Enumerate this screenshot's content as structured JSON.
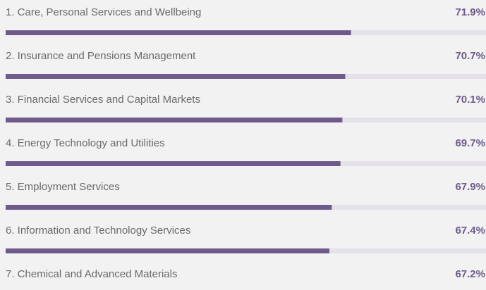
{
  "chart_data": {
    "type": "bar",
    "orientation": "horizontal",
    "categories": [
      "1. Care, Personal Services and Wellbeing",
      "2. Insurance and Pensions Management",
      "3. Financial Services and Capital Markets",
      "4. Energy Technology and Utilities",
      "5. Employment Services",
      "6. Information and Technology Services",
      "7. Chemical and Advanced Materials"
    ],
    "values": [
      71.9,
      70.7,
      70.1,
      69.7,
      67.9,
      67.4,
      67.2
    ],
    "value_labels": [
      "71.9%",
      "70.7%",
      "70.1%",
      "69.7%",
      "67.9%",
      "67.4%",
      "67.2%"
    ],
    "color": "#6e5b8c",
    "track_color": "#e4e1e9",
    "xlim": [
      0,
      100
    ]
  }
}
